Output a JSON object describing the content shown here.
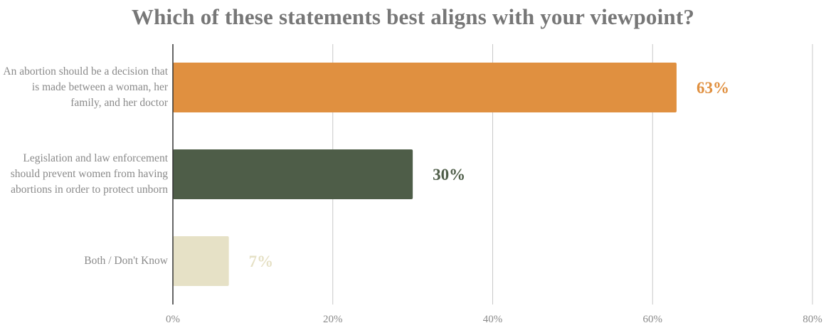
{
  "chart_data": {
    "type": "bar",
    "orientation": "horizontal",
    "title": "Which of these statements best aligns with your viewpoint?",
    "categories": [
      "An abortion should be a decision that is made between a woman, her family, and her doctor",
      "Legislation and law enforcement should prevent women from having abortions in order to protect unborn",
      "Both / Don't Know"
    ],
    "values": [
      63,
      30,
      7
    ],
    "data_labels": [
      "63%",
      "30%",
      "7%"
    ],
    "colors": [
      "#E09040",
      "#4E5D48",
      "#E6E1C6"
    ],
    "xlim": [
      0,
      80
    ],
    "x_ticks": [
      0,
      20,
      40,
      60,
      80
    ],
    "x_tick_labels": [
      "0%",
      "20%",
      "40%",
      "60%",
      "80%"
    ],
    "grid": "vertical",
    "legend": "none"
  }
}
